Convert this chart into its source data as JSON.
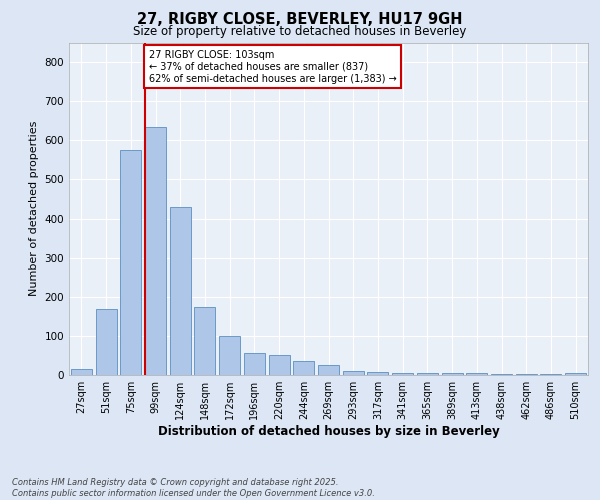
{
  "title_line1": "27, RIGBY CLOSE, BEVERLEY, HU17 9GH",
  "title_line2": "Size of property relative to detached houses in Beverley",
  "xlabel": "Distribution of detached houses by size in Beverley",
  "ylabel": "Number of detached properties",
  "categories": [
    "27sqm",
    "51sqm",
    "75sqm",
    "99sqm",
    "124sqm",
    "148sqm",
    "172sqm",
    "196sqm",
    "220sqm",
    "244sqm",
    "269sqm",
    "293sqm",
    "317sqm",
    "341sqm",
    "365sqm",
    "389sqm",
    "413sqm",
    "438sqm",
    "462sqm",
    "486sqm",
    "510sqm"
  ],
  "values": [
    15,
    170,
    575,
    635,
    430,
    175,
    100,
    55,
    50,
    35,
    25,
    10,
    8,
    5,
    4,
    4,
    4,
    3,
    3,
    2,
    4
  ],
  "bar_color": "#aec6e8",
  "bar_edge_color": "#5a8fc2",
  "vline_x_index": 3,
  "vline_color": "#cc0000",
  "annotation_text": "27 RIGBY CLOSE: 103sqm\n← 37% of detached houses are smaller (837)\n62% of semi-detached houses are larger (1,383) →",
  "annotation_box_color": "#cc0000",
  "annotation_box_facecolor": "#ffffff",
  "ylim": [
    0,
    850
  ],
  "yticks": [
    0,
    100,
    200,
    300,
    400,
    500,
    600,
    700,
    800
  ],
  "footer_text": "Contains HM Land Registry data © Crown copyright and database right 2025.\nContains public sector information licensed under the Open Government Licence v3.0.",
  "bg_color": "#dce6f5",
  "plot_bg_color": "#eaf0f8",
  "grid_color": "#ffffff"
}
